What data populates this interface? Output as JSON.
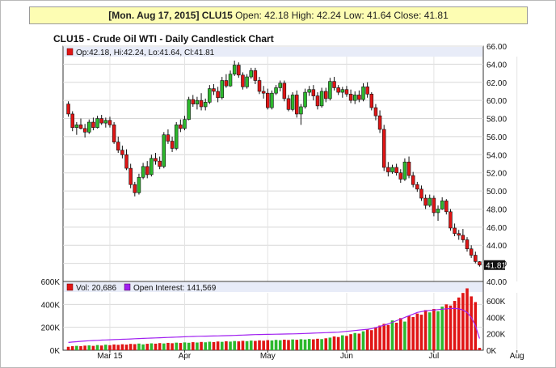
{
  "banner": {
    "date": "[Mon. Aug 17, 2015]",
    "symbol": "CLU15",
    "open_label": "Open:",
    "open": "42.18",
    "high_label": "High:",
    "high": "42.24",
    "low_label": "Low:",
    "low": "41.64",
    "close_label": "Close:",
    "close": "41.81"
  },
  "colors": {
    "up": "#2db82d",
    "down": "#e01515",
    "oi": "#a020f0",
    "legend_bg": "#e8ecf8"
  },
  "chart_data": [
    {
      "type": "candlestick",
      "title": "CLU15 - Crude Oil WTI - Daily Candlestick Chart",
      "legend": "Op:42.18, Hi:42.24, Lo:41.64, Cl:41.81",
      "last_price_label": "41.81",
      "ylim": [
        40,
        66
      ],
      "yticks": [
        "66.00",
        "64.00",
        "62.00",
        "60.00",
        "58.00",
        "56.00",
        "54.00",
        "52.00",
        "50.00",
        "48.00",
        "46.00",
        "44.00",
        "42.00",
        "40.00"
      ],
      "x_labels": [
        {
          "label": "Mar 15",
          "index": 10
        },
        {
          "label": "Apr",
          "index": 28
        },
        {
          "label": "May",
          "index": 48
        },
        {
          "label": "Jun",
          "index": 67
        },
        {
          "label": "Jul",
          "index": 88
        },
        {
          "label": "Aug",
          "index": 108
        }
      ],
      "candles": [
        [
          59.6,
          59.9,
          58.2,
          58.5
        ],
        [
          58.5,
          58.8,
          56.6,
          57.0
        ],
        [
          57.0,
          57.6,
          56.2,
          57.3
        ],
        [
          57.3,
          58.0,
          56.8,
          56.9
        ],
        [
          56.9,
          57.4,
          55.9,
          56.5
        ],
        [
          56.5,
          57.9,
          56.3,
          57.6
        ],
        [
          57.6,
          58.1,
          56.7,
          57.0
        ],
        [
          57.0,
          58.3,
          56.9,
          58.0
        ],
        [
          58.0,
          58.4,
          57.3,
          57.5
        ],
        [
          57.5,
          58.1,
          57.0,
          57.8
        ],
        [
          57.8,
          58.2,
          57.0,
          57.3
        ],
        [
          57.3,
          57.6,
          55.2,
          55.4
        ],
        [
          55.4,
          56.0,
          54.2,
          54.5
        ],
        [
          54.5,
          55.0,
          53.6,
          54.0
        ],
        [
          54.0,
          54.6,
          52.3,
          52.5
        ],
        [
          52.5,
          53.0,
          50.3,
          50.7
        ],
        [
          50.7,
          51.0,
          49.4,
          49.8
        ],
        [
          49.8,
          51.9,
          49.6,
          51.5
        ],
        [
          51.5,
          53.1,
          51.3,
          52.7
        ],
        [
          52.7,
          53.3,
          51.4,
          51.8
        ],
        [
          51.8,
          54.0,
          51.6,
          53.6
        ],
        [
          53.6,
          54.2,
          52.9,
          53.3
        ],
        [
          53.3,
          53.8,
          52.4,
          52.7
        ],
        [
          52.7,
          56.5,
          52.5,
          56.2
        ],
        [
          56.2,
          56.8,
          55.2,
          55.5
        ],
        [
          55.5,
          56.0,
          54.3,
          54.7
        ],
        [
          54.7,
          57.6,
          54.5,
          57.3
        ],
        [
          57.3,
          57.9,
          56.5,
          56.9
        ],
        [
          56.9,
          58.3,
          56.7,
          57.9
        ],
        [
          57.9,
          60.4,
          57.8,
          60.1
        ],
        [
          60.1,
          60.6,
          59.3,
          59.6
        ],
        [
          59.6,
          60.4,
          59.0,
          60.0
        ],
        [
          60.0,
          60.8,
          58.9,
          59.3
        ],
        [
          59.3,
          60.2,
          58.9,
          59.8
        ],
        [
          59.8,
          61.7,
          59.6,
          61.3
        ],
        [
          61.3,
          61.8,
          60.6,
          61.0
        ],
        [
          61.0,
          61.5,
          59.8,
          60.3
        ],
        [
          60.3,
          62.6,
          60.1,
          62.2
        ],
        [
          62.2,
          62.9,
          61.4,
          61.6
        ],
        [
          61.6,
          63.3,
          61.5,
          62.9
        ],
        [
          62.9,
          64.4,
          62.7,
          63.9
        ],
        [
          63.9,
          64.2,
          62.5,
          62.8
        ],
        [
          62.8,
          63.1,
          61.2,
          61.5
        ],
        [
          61.5,
          62.9,
          61.3,
          62.6
        ],
        [
          62.6,
          63.6,
          62.4,
          63.3
        ],
        [
          63.3,
          63.6,
          61.8,
          62.2
        ],
        [
          62.2,
          62.6,
          60.7,
          61.0
        ],
        [
          61.0,
          61.6,
          60.2,
          60.8
        ],
        [
          60.8,
          61.3,
          59.0,
          59.2
        ],
        [
          59.2,
          61.1,
          59.0,
          60.8
        ],
        [
          60.8,
          61.7,
          60.6,
          61.4
        ],
        [
          61.4,
          62.2,
          61.0,
          61.9
        ],
        [
          61.9,
          62.2,
          59.9,
          60.2
        ],
        [
          60.2,
          60.6,
          58.8,
          59.0
        ],
        [
          59.0,
          60.9,
          58.8,
          60.6
        ],
        [
          60.6,
          61.1,
          58.1,
          58.5
        ],
        [
          58.5,
          59.6,
          57.3,
          59.3
        ],
        [
          59.3,
          61.3,
          59.1,
          60.9
        ],
        [
          60.9,
          61.6,
          60.5,
          61.2
        ],
        [
          61.2,
          61.7,
          60.0,
          60.5
        ],
        [
          60.5,
          60.9,
          59.0,
          59.4
        ],
        [
          59.4,
          61.4,
          59.2,
          61.0
        ],
        [
          61.0,
          61.4,
          59.8,
          60.2
        ],
        [
          60.2,
          62.5,
          60.0,
          62.1
        ],
        [
          62.1,
          62.6,
          61.1,
          61.4
        ],
        [
          61.4,
          61.7,
          60.6,
          60.9
        ],
        [
          60.9,
          61.5,
          60.3,
          61.2
        ],
        [
          61.2,
          61.6,
          60.4,
          60.7
        ],
        [
          60.7,
          61.2,
          59.7,
          60.0
        ],
        [
          60.0,
          61.0,
          59.6,
          60.6
        ],
        [
          60.6,
          61.1,
          59.8,
          60.1
        ],
        [
          60.1,
          61.9,
          59.9,
          61.5
        ],
        [
          61.5,
          62.0,
          60.3,
          60.7
        ],
        [
          60.7,
          60.9,
          58.9,
          59.2
        ],
        [
          59.2,
          59.6,
          57.8,
          58.3
        ],
        [
          58.3,
          58.9,
          56.4,
          56.8
        ],
        [
          56.8,
          57.3,
          52.2,
          52.6
        ],
        [
          52.6,
          53.2,
          51.6,
          52.1
        ],
        [
          52.1,
          52.9,
          51.9,
          52.6
        ],
        [
          52.6,
          53.0,
          51.7,
          52.0
        ],
        [
          52.0,
          52.4,
          50.9,
          51.3
        ],
        [
          51.3,
          53.6,
          51.1,
          53.2
        ],
        [
          53.2,
          53.8,
          51.4,
          51.7
        ],
        [
          51.7,
          52.1,
          50.4,
          50.7
        ],
        [
          50.7,
          51.0,
          49.9,
          50.2
        ],
        [
          50.2,
          50.6,
          48.9,
          49.2
        ],
        [
          49.2,
          49.6,
          48.0,
          48.4
        ],
        [
          48.4,
          49.6,
          48.2,
          49.2
        ],
        [
          49.2,
          49.5,
          47.2,
          47.6
        ],
        [
          47.6,
          48.4,
          46.7,
          48.0
        ],
        [
          48.0,
          49.3,
          47.9,
          48.9
        ],
        [
          48.9,
          49.1,
          47.4,
          47.7
        ],
        [
          47.7,
          48.0,
          45.6,
          45.9
        ],
        [
          45.9,
          46.4,
          45.0,
          45.3
        ],
        [
          45.3,
          45.7,
          44.6,
          45.1
        ],
        [
          45.1,
          45.8,
          44.3,
          44.6
        ],
        [
          44.6,
          44.9,
          43.3,
          43.6
        ],
        [
          43.6,
          44.0,
          42.6,
          42.9
        ],
        [
          42.9,
          43.3,
          42.0,
          42.2
        ],
        [
          42.18,
          42.24,
          41.64,
          41.81
        ]
      ]
    },
    {
      "type": "bar+line",
      "legend_volume": "Vol: 20,686",
      "legend_oi": "Open Interest: 141,569",
      "volume_ylim": [
        0,
        600000
      ],
      "volume_ticks": [
        "600K",
        "400K",
        "200K",
        "0K"
      ],
      "oi_ylim": [
        0,
        700000
      ],
      "oi_ticks": [
        "600K",
        "400K",
        "200K",
        "0K"
      ],
      "volume": [
        30000,
        35000,
        38000,
        36000,
        40000,
        42000,
        38000,
        45000,
        41000,
        48000,
        44000,
        50000,
        47000,
        52000,
        49000,
        55000,
        53000,
        58000,
        51000,
        56000,
        60000,
        57000,
        62000,
        59000,
        64000,
        61000,
        66000,
        63000,
        68000,
        65000,
        70000,
        67000,
        72000,
        69000,
        74000,
        71000,
        76000,
        73000,
        78000,
        75000,
        80000,
        77000,
        82000,
        79000,
        84000,
        81000,
        86000,
        83000,
        88000,
        85000,
        90000,
        87000,
        92000,
        89000,
        94000,
        91000,
        96000,
        93000,
        98000,
        95000,
        100000,
        97000,
        104000,
        110000,
        120000,
        115000,
        130000,
        125000,
        140000,
        150000,
        145000,
        165000,
        180000,
        175000,
        200000,
        215000,
        230000,
        220000,
        260000,
        240000,
        280000,
        250000,
        300000,
        290000,
        320000,
        310000,
        350000,
        330000,
        360000,
        340000,
        380000,
        400000,
        390000,
        430000,
        460000,
        500000,
        540000,
        470000,
        420000,
        20686
      ],
      "open_interest": [
        95000,
        100000,
        104000,
        108000,
        112000,
        115000,
        118000,
        120000,
        123000,
        125000,
        127000,
        129000,
        131000,
        133000,
        135000,
        137000,
        140000,
        142000,
        144000,
        146000,
        148000,
        150000,
        152000,
        154000,
        156000,
        158000,
        160000,
        162000,
        164000,
        166000,
        168000,
        170000,
        171000,
        172000,
        173000,
        174000,
        175000,
        176000,
        177000,
        178000,
        180000,
        182000,
        184000,
        186000,
        188000,
        190000,
        191000,
        192000,
        193000,
        194000,
        195000,
        196000,
        197000,
        198000,
        199000,
        200000,
        202000,
        204000,
        206000,
        208000,
        210000,
        212000,
        214000,
        216000,
        218000,
        220000,
        225000,
        230000,
        235000,
        240000,
        245000,
        250000,
        255000,
        262000,
        275000,
        290000,
        305000,
        320000,
        340000,
        360000,
        380000,
        400000,
        420000,
        440000,
        460000,
        470000,
        480000,
        485000,
        490000,
        495000,
        500000,
        505000,
        508000,
        510000,
        505000,
        490000,
        460000,
        400000,
        300000,
        141569
      ]
    }
  ]
}
